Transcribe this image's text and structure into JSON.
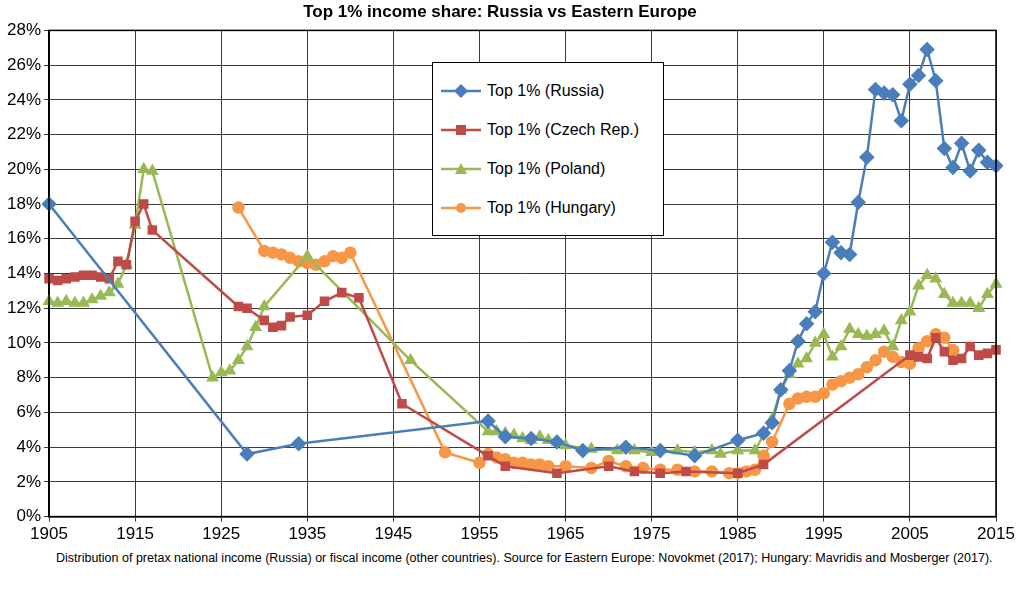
{
  "chart_data": {
    "type": "line",
    "title": "Top 1% income share: Russia vs Eastern Europe",
    "caption": "Distribution of pretax national income (Russia) or fiscal income (other countries). Source for Eastern Europe: Novokmet (2017); Hungary: Mavridis and Mosberger (2017).",
    "xlim": [
      1905,
      2015
    ],
    "xticks": [
      1905,
      1915,
      1925,
      1935,
      1945,
      1955,
      1965,
      1975,
      1985,
      1995,
      2005,
      2015
    ],
    "ylim": [
      0,
      28
    ],
    "yticks": [
      {
        "value": 0,
        "label": "0%"
      },
      {
        "value": 2,
        "label": "2%"
      },
      {
        "value": 4,
        "label": "4%"
      },
      {
        "value": 6,
        "label": "6%"
      },
      {
        "value": 8,
        "label": "8%"
      },
      {
        "value": 10,
        "label": "10%"
      },
      {
        "value": 12,
        "label": "12%"
      },
      {
        "value": 14,
        "label": "14%"
      },
      {
        "value": 16,
        "label": "16%"
      },
      {
        "value": 18,
        "label": "18%"
      },
      {
        "value": 20,
        "label": "20%"
      },
      {
        "value": 22,
        "label": "22%"
      },
      {
        "value": 24,
        "label": "24%"
      },
      {
        "value": 26,
        "label": "26%"
      },
      {
        "value": 28,
        "label": "28%"
      }
    ],
    "grid": true,
    "legend": "top",
    "series": [
      {
        "name": "Top 1% (Russia)",
        "color": "#4a7ebb",
        "marker": "diamond",
        "x": [
          1905,
          1928,
          1934,
          1956,
          1958,
          1961,
          1964,
          1967,
          1972,
          1976,
          1980,
          1985,
          1988,
          1989,
          1990,
          1991,
          1992,
          1993,
          1994,
          1995,
          1996,
          1997,
          1998,
          1999,
          2000,
          2001,
          2002,
          2003,
          2004,
          2005,
          2006,
          2007,
          2008,
          2009,
          2010,
          2011,
          2012,
          2013,
          2014,
          2015
        ],
        "values": [
          18.0,
          3.6,
          4.2,
          5.5,
          4.6,
          4.5,
          4.3,
          3.8,
          4.0,
          3.8,
          3.5,
          4.4,
          4.8,
          5.4,
          7.3,
          8.4,
          10.1,
          11.1,
          11.8,
          14.0,
          15.8,
          15.2,
          15.1,
          18.1,
          20.7,
          24.6,
          24.4,
          24.3,
          22.8,
          24.9,
          25.4,
          26.9,
          25.1,
          21.2,
          20.1,
          21.5,
          19.9,
          21.1,
          20.4,
          20.2
        ]
      },
      {
        "name": "Top 1% (Czech Rep.)",
        "color": "#be4b48",
        "marker": "square",
        "x": [
          1905,
          1906,
          1907,
          1908,
          1909,
          1910,
          1911,
          1912,
          1913,
          1914,
          1915,
          1916,
          1917,
          1927,
          1928,
          1930,
          1931,
          1932,
          1933,
          1935,
          1937,
          1939,
          1941,
          1946,
          1956,
          1958,
          1964,
          1970,
          1973,
          1976,
          1979,
          1985,
          1988,
          2005,
          2006,
          2007,
          2008,
          2009,
          2010,
          2011,
          2012,
          2013,
          2014,
          2015
        ],
        "values": [
          13.7,
          13.6,
          13.7,
          13.8,
          13.9,
          13.9,
          13.8,
          13.7,
          14.7,
          14.5,
          17.0,
          18.0,
          16.5,
          12.1,
          12.0,
          11.3,
          10.9,
          11.0,
          11.5,
          11.6,
          12.4,
          12.9,
          12.6,
          6.5,
          3.5,
          2.9,
          2.5,
          2.9,
          2.6,
          2.5,
          2.6,
          2.5,
          3.0,
          9.3,
          9.2,
          9.1,
          10.3,
          9.5,
          9.0,
          9.1,
          9.8,
          9.3,
          9.4,
          9.6
        ]
      },
      {
        "name": "Top 1% (Poland)",
        "color": "#98b954",
        "marker": "triangle",
        "x": [
          1905,
          1906,
          1907,
          1908,
          1909,
          1910,
          1911,
          1912,
          1913,
          1914,
          1915,
          1916,
          1917,
          1924,
          1925,
          1926,
          1927,
          1928,
          1929,
          1930,
          1935,
          1947,
          1956,
          1957,
          1958,
          1959,
          1960,
          1961,
          1962,
          1963,
          1964,
          1965,
          1968,
          1971,
          1973,
          1975,
          1978,
          1980,
          1982,
          1983,
          1985,
          1987,
          1989,
          1990,
          1991,
          1992,
          1993,
          1994,
          1995,
          1996,
          1997,
          1998,
          1999,
          2000,
          2001,
          2002,
          2003,
          2004,
          2005,
          2006,
          2007,
          2008,
          2009,
          2010,
          2011,
          2012,
          2013,
          2014,
          2015
        ],
        "values": [
          12.4,
          12.3,
          12.4,
          12.3,
          12.3,
          12.5,
          12.7,
          12.9,
          13.4,
          14.5,
          16.8,
          20.0,
          19.9,
          8.0,
          8.3,
          8.4,
          9.0,
          9.8,
          10.9,
          12.1,
          15.0,
          9.0,
          4.9,
          4.9,
          4.8,
          4.7,
          4.5,
          4.4,
          4.6,
          4.4,
          4.3,
          4.1,
          3.9,
          3.8,
          3.8,
          3.7,
          3.8,
          3.7,
          3.8,
          3.6,
          3.8,
          3.8,
          5.6,
          7.3,
          8.2,
          8.8,
          9.1,
          10.0,
          10.5,
          9.2,
          9.8,
          10.8,
          10.5,
          10.4,
          10.5,
          10.7,
          9.8,
          11.3,
          11.8,
          13.3,
          13.9,
          13.7,
          12.8,
          12.3,
          12.3,
          12.3,
          12.0,
          12.8,
          13.4
        ]
      },
      {
        "name": "Top 1% (Hungary)",
        "color": "#f79646",
        "marker": "circle",
        "x": [
          1927,
          1930,
          1931,
          1932,
          1933,
          1934,
          1935,
          1936,
          1937,
          1938,
          1939,
          1940,
          1951,
          1955,
          1956,
          1957,
          1958,
          1959,
          1960,
          1961,
          1962,
          1963,
          1965,
          1968,
          1970,
          1972,
          1974,
          1976,
          1978,
          1980,
          1982,
          1984,
          1985,
          1986,
          1987,
          1988,
          1989,
          1991,
          1992,
          1993,
          1994,
          1995,
          1996,
          1997,
          1998,
          1999,
          2000,
          2001,
          2002,
          2003,
          2004,
          2005,
          2006,
          2007,
          2008,
          2009,
          2010
        ],
        "values": [
          17.8,
          15.3,
          15.2,
          15.1,
          14.9,
          14.7,
          14.6,
          14.5,
          14.7,
          15.0,
          14.9,
          15.2,
          3.7,
          3.1,
          3.6,
          3.4,
          3.3,
          3.1,
          3.1,
          3.0,
          3.0,
          2.9,
          2.9,
          2.8,
          3.2,
          2.9,
          2.8,
          2.7,
          2.7,
          2.6,
          2.6,
          2.5,
          2.5,
          2.6,
          2.7,
          3.5,
          4.3,
          6.5,
          6.8,
          6.9,
          6.9,
          7.1,
          7.6,
          7.8,
          8.0,
          8.2,
          8.6,
          9.0,
          9.5,
          9.2,
          8.9,
          8.8,
          9.7,
          10.1,
          10.5,
          10.3,
          9.6
        ]
      }
    ]
  }
}
